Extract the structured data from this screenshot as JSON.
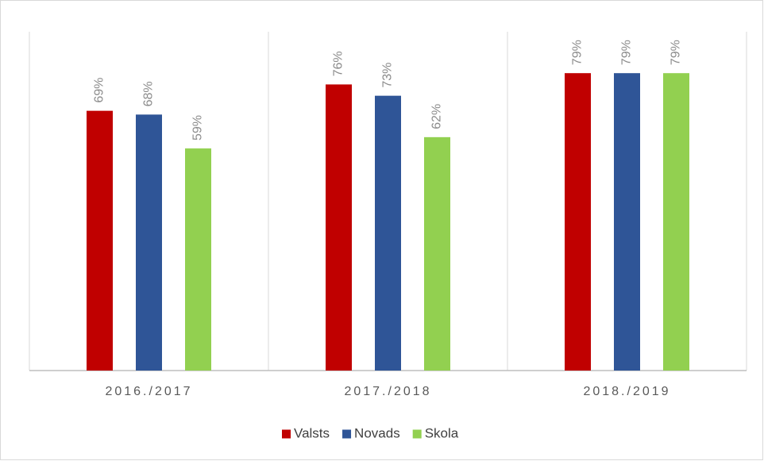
{
  "chart_data": {
    "type": "bar",
    "categories": [
      "2016./2017",
      "2017./2018",
      "2018./2019"
    ],
    "series": [
      {
        "name": "Valsts",
        "color": "#c00000",
        "values": [
          69,
          76,
          79
        ],
        "value_labels": [
          "69%",
          "76%",
          "79%"
        ]
      },
      {
        "name": "Novads",
        "color": "#2f5597",
        "values": [
          68,
          73,
          79
        ],
        "value_labels": [
          "68%",
          "73%",
          "79%"
        ]
      },
      {
        "name": "Skola",
        "color": "#92d050",
        "values": [
          59,
          62,
          79
        ],
        "value_labels": [
          "59%",
          "62%",
          "79%"
        ]
      }
    ],
    "ylim": [
      0,
      90
    ],
    "legend": "bottom"
  }
}
